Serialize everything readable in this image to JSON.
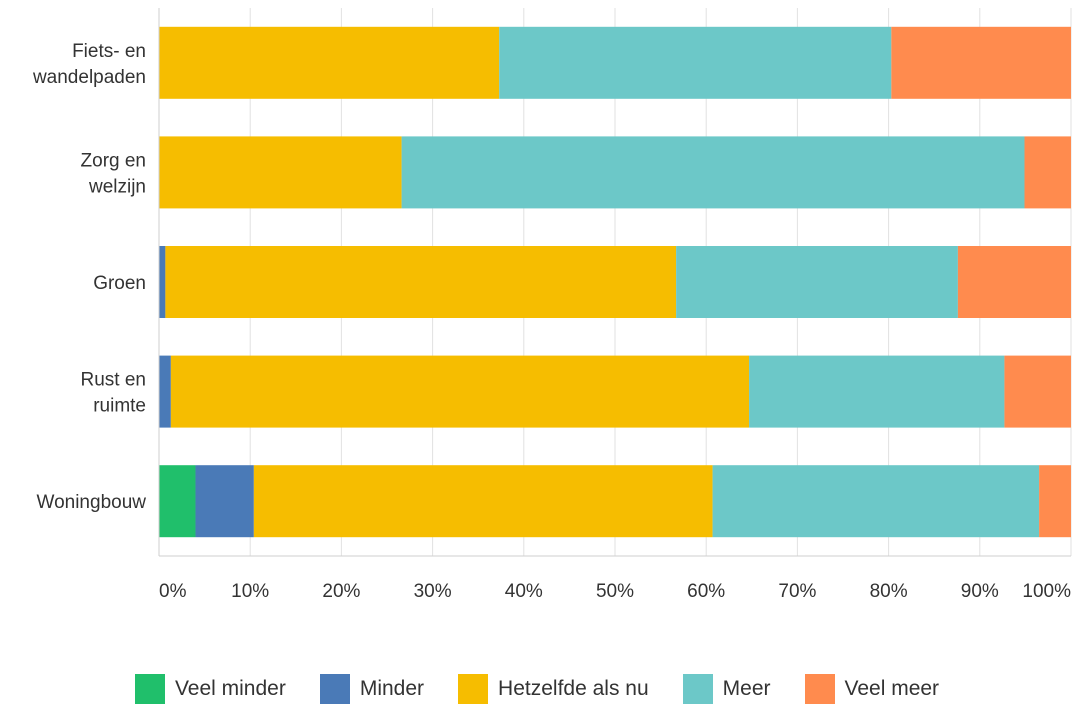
{
  "chart_data": {
    "type": "bar",
    "orientation": "horizontal",
    "stacked": true,
    "categories": [
      "Fiets- en\nwandelpaden",
      "Zorg en\nwelzijn",
      "Groen",
      "Rust en\nruimte",
      "Woningbouw"
    ],
    "series": [
      {
        "name": "Veel minder",
        "color": "#20bf6b",
        "values": [
          0,
          0,
          0,
          0,
          4
        ]
      },
      {
        "name": "Minder",
        "color": "#4a7ab7",
        "values": [
          0,
          0,
          0.7,
          1.3,
          6.4
        ]
      },
      {
        "name": "Hetzelfde als nu",
        "color": "#f6bd00",
        "values": [
          37.3,
          26.6,
          56,
          63.4,
          50.3
        ]
      },
      {
        "name": "Meer",
        "color": "#6cc8c8",
        "values": [
          43,
          68.3,
          30.9,
          28,
          35.8
        ]
      },
      {
        "name": "Veel meer",
        "color": "#ff8b4e",
        "values": [
          19.7,
          5.1,
          12.4,
          7.3,
          3.5
        ]
      }
    ],
    "xlim": [
      0,
      100
    ],
    "x_ticks": [
      "0%",
      "10%",
      "20%",
      "30%",
      "40%",
      "50%",
      "60%",
      "70%",
      "80%",
      "90%",
      "100%"
    ],
    "grid": true,
    "legend_position": "bottom",
    "title": "",
    "xlabel": "",
    "ylabel": ""
  }
}
